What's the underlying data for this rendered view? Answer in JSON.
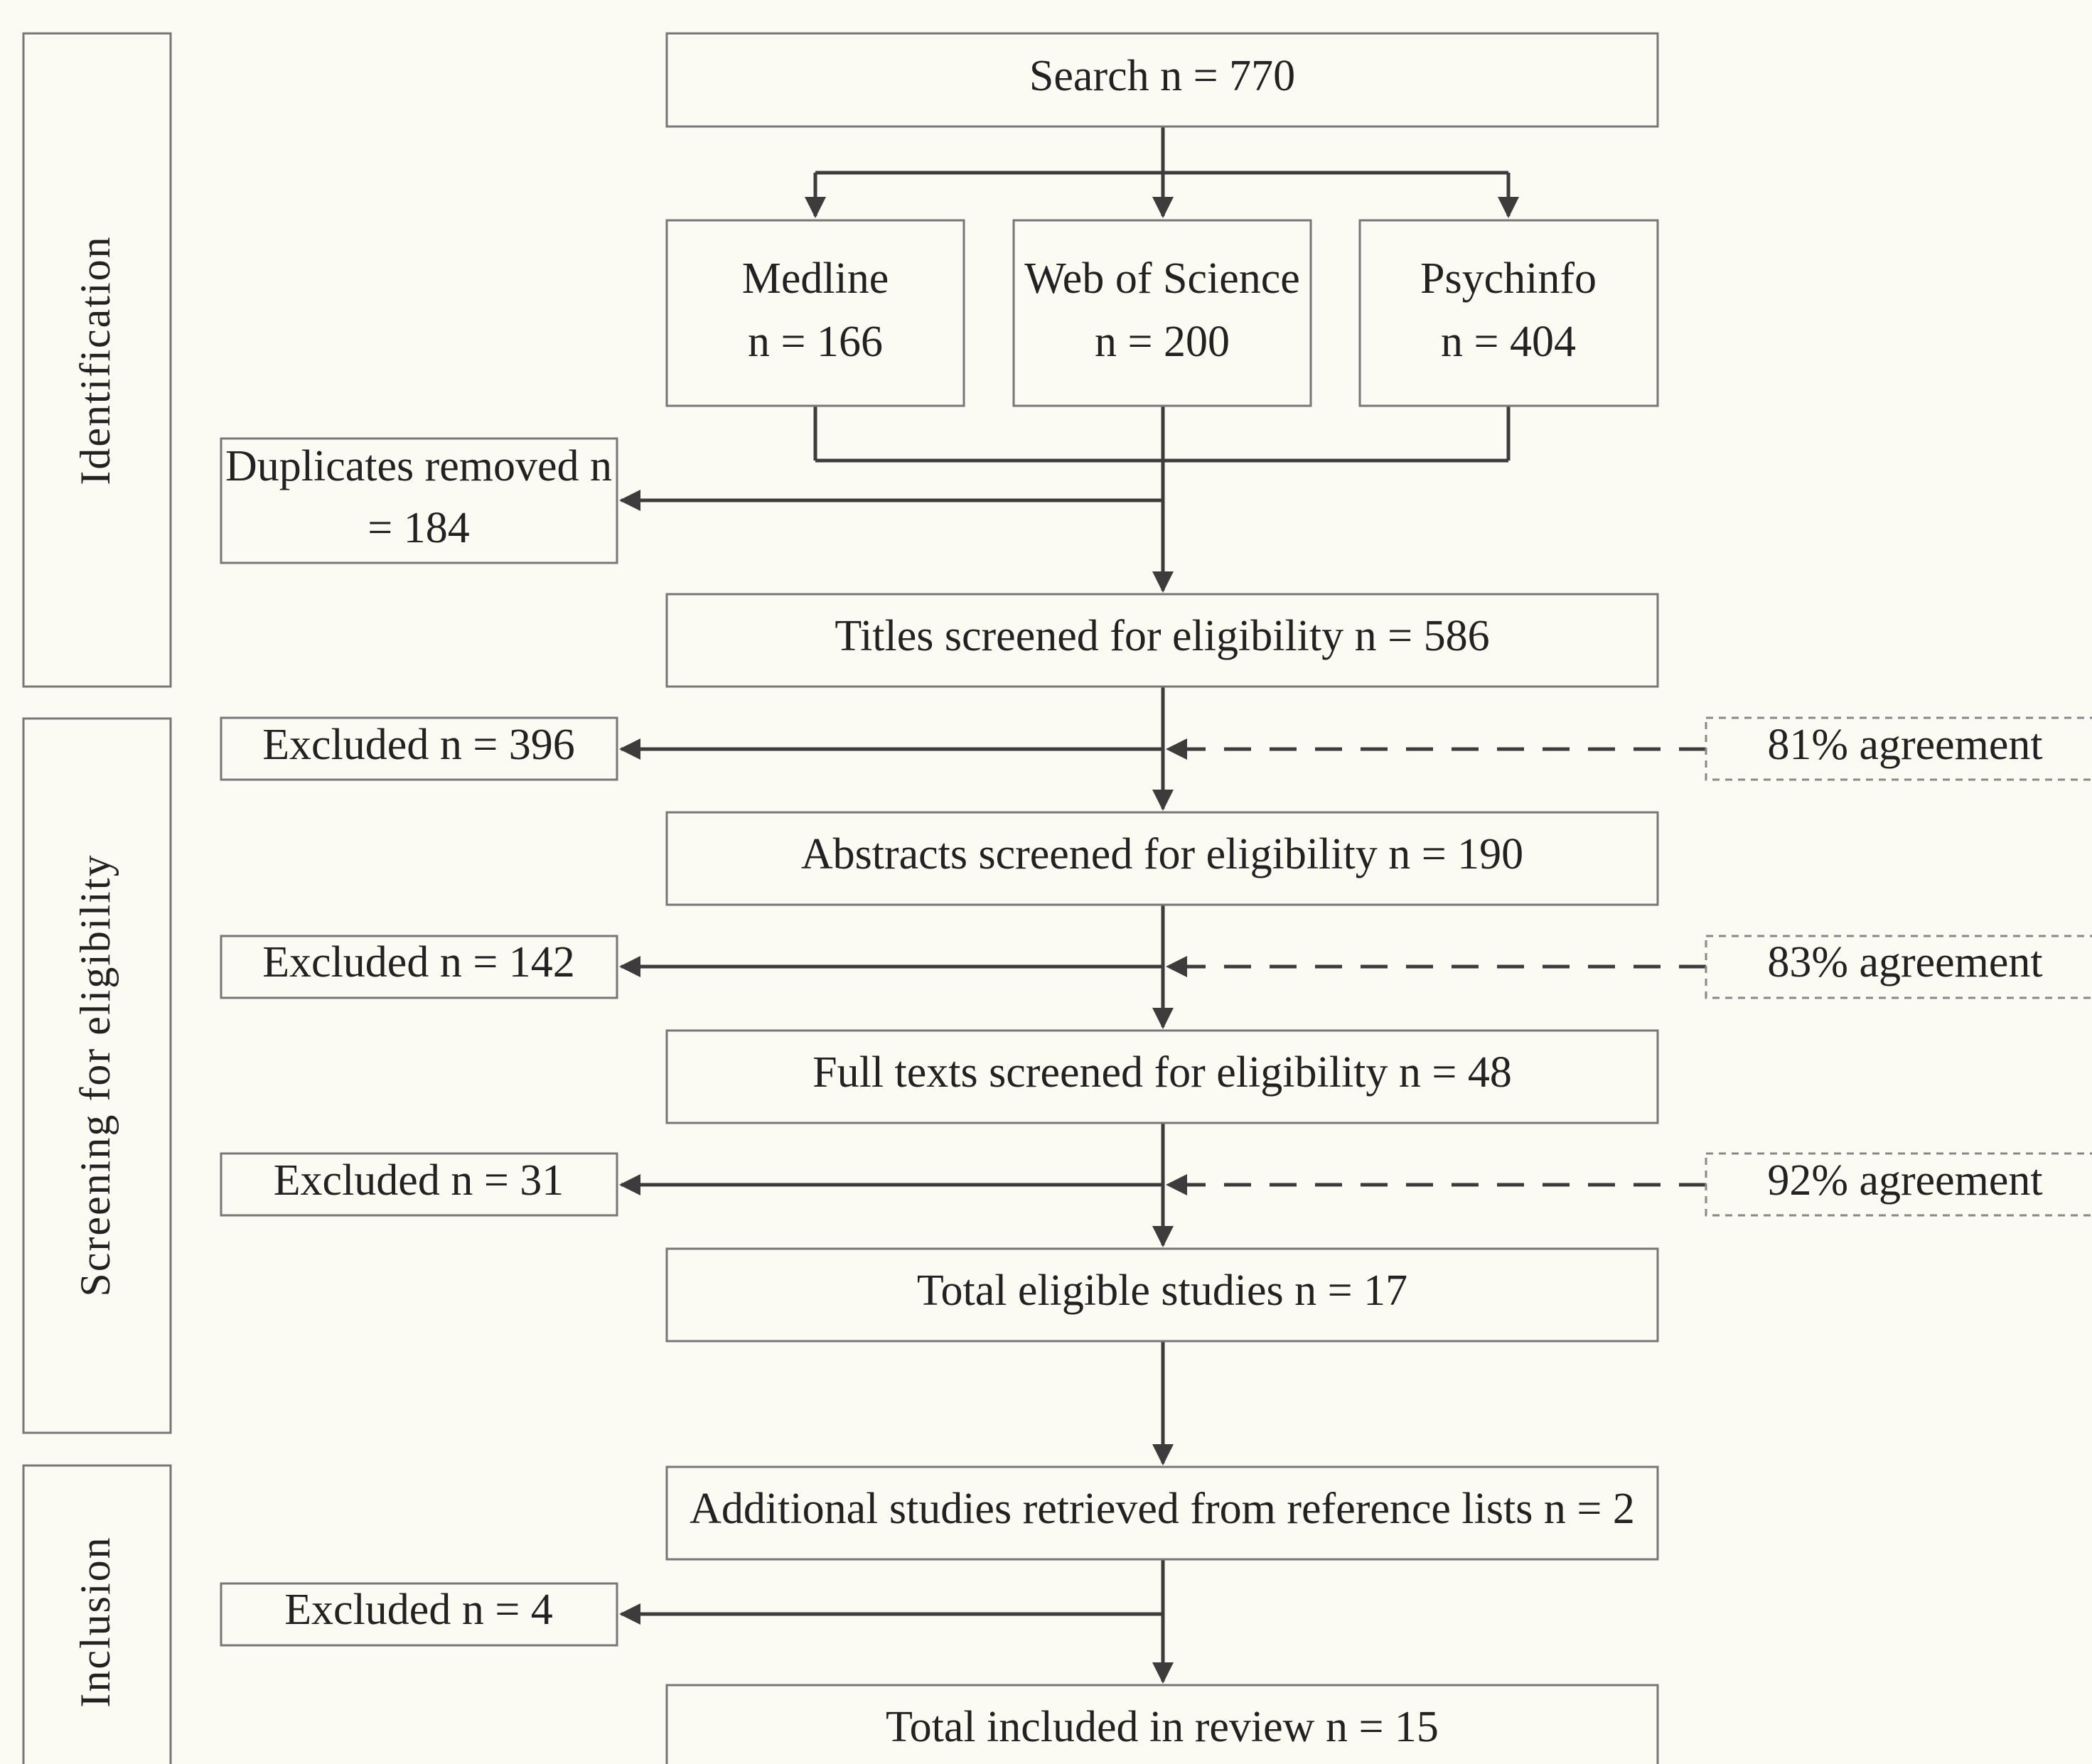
{
  "phases": {
    "identification": "Identification",
    "screening": "Screening for eligibility",
    "inclusion": "Inclusion"
  },
  "boxes": {
    "search": "Search n = 770",
    "medline_name": "Medline",
    "medline_n": "n = 166",
    "wos_name": "Web of Science",
    "wos_n": "n = 200",
    "psych_name": "Psychinfo",
    "psych_n": "n = 404",
    "duplicates_line1": "Duplicates removed n",
    "duplicates_line2": "= 184",
    "titles": "Titles screened for eligibility n = 586",
    "excluded_1": "Excluded n = 396",
    "agreement_1": "81% agreement",
    "abstracts": "Abstracts screened for eligibility n = 190",
    "excluded_2": "Excluded n = 142",
    "agreement_2": "83% agreement",
    "fulltexts": "Full texts screened for eligibility n = 48",
    "excluded_3": "Excluded n = 31",
    "agreement_3": "92% agreement",
    "eligible": "Total eligible studies n = 17",
    "additional": "Additional studies retrieved from reference lists n = 2",
    "excluded_4": "Excluded n = 4",
    "included": "Total included in review n = 15"
  }
}
